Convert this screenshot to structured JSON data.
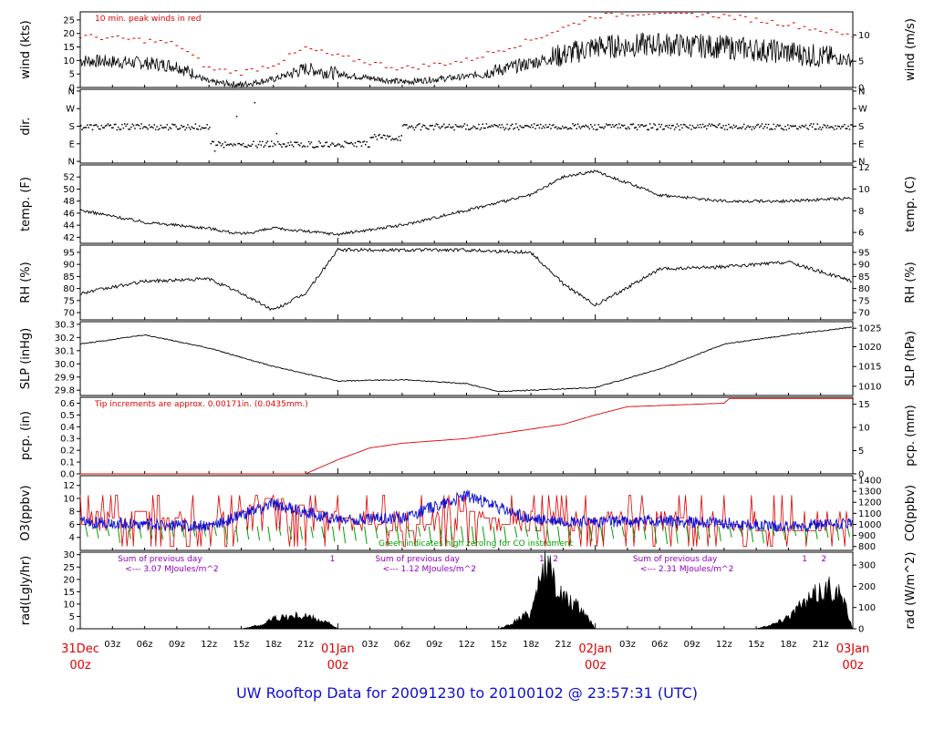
{
  "title": "UW Rooftop Data for 20091230  to  20100102 @ 23:57:31  (UTC)",
  "colors": {
    "red": "#e00000",
    "blue": "#1010d0",
    "green": "#00a000",
    "purple": "#9000c0",
    "black": "#000000"
  },
  "time_axis": {
    "hour_ticks": [
      "03z",
      "06z",
      "09z",
      "12z",
      "15z",
      "18z",
      "21z",
      "03z",
      "06z",
      "09z",
      "12z",
      "15z",
      "18z",
      "21z",
      "03z",
      "06z",
      "09z",
      "12z",
      "15z",
      "18z",
      "21z"
    ],
    "date_labels": [
      {
        "date": "31Dec",
        "hour": "00z",
        "day": 0
      },
      {
        "date": "01Jan",
        "hour": "00z",
        "day": 1
      },
      {
        "date": "02Jan",
        "hour": "00z",
        "day": 2
      },
      {
        "date": "03Jan",
        "hour": "00z",
        "day": 3
      }
    ]
  },
  "chart_data": [
    {
      "type": "line",
      "panel": "wind",
      "ylabel": "wind (kts)",
      "y2label": "wind (m/s)",
      "ylim": [
        0,
        28
      ],
      "yticks": [
        "0",
        "5",
        "10",
        "15",
        "20",
        "25"
      ],
      "y2ticks": [
        "0",
        "5",
        "10"
      ],
      "annotation": "10 min. peak winds in red",
      "series": [
        {
          "color": "black",
          "x_hours": [
            0,
            6,
            9,
            12,
            15,
            18,
            21,
            24,
            30,
            36,
            42,
            45,
            48,
            54,
            60,
            66,
            72
          ],
          "values": [
            10,
            9,
            8,
            2,
            1,
            3,
            7,
            5,
            2,
            4,
            9,
            12,
            15,
            16,
            15,
            13,
            10
          ]
        }
      ]
    },
    {
      "type": "scatter",
      "panel": "dir",
      "ylabel": "dir.",
      "yticks": [
        "N",
        "E",
        "S",
        "W",
        "N"
      ],
      "y2ticks": [
        "N",
        "E",
        "S",
        "W",
        "N"
      ],
      "series": [
        {
          "color": "black",
          "x_hours": [
            0,
            6,
            12,
            15,
            18,
            24,
            27,
            30,
            36,
            48,
            60,
            72
          ],
          "values": [
            "S",
            "S",
            "S",
            "E",
            "E",
            "E",
            "E",
            "SE",
            "S",
            "S",
            "S",
            "S"
          ]
        }
      ]
    },
    {
      "type": "line",
      "panel": "temp",
      "ylabel": "temp. (F)",
      "y2label": "temp. (C)",
      "ylim": [
        41,
        54
      ],
      "yticks": [
        "42",
        "44",
        "46",
        "48",
        "50",
        "52"
      ],
      "y2ticks": [
        "6",
        "8",
        "10",
        "12"
      ],
      "series": [
        {
          "color": "black",
          "x_hours": [
            0,
            6,
            12,
            15,
            18,
            24,
            30,
            36,
            42,
            45,
            48,
            54,
            60,
            66,
            72
          ],
          "values": [
            46.5,
            44.5,
            43.5,
            42.5,
            43.5,
            42.5,
            44,
            46.5,
            49,
            52,
            53,
            49,
            48,
            48,
            48.5
          ]
        }
      ]
    },
    {
      "type": "line",
      "panel": "rh",
      "ylabel": "RH (%)",
      "y2label": "RH (%)",
      "ylim": [
        67,
        98
      ],
      "yticks": [
        "70",
        "75",
        "80",
        "85",
        "90",
        "95"
      ],
      "y2ticks": [
        "70",
        "75",
        "80",
        "85",
        "90",
        "95"
      ],
      "series": [
        {
          "color": "black",
          "x_hours": [
            0,
            6,
            12,
            15,
            18,
            21,
            24,
            30,
            36,
            42,
            45,
            48,
            54,
            60,
            66,
            72
          ],
          "values": [
            78,
            83,
            84,
            78,
            71,
            78,
            96,
            96,
            96,
            95,
            82,
            73,
            88,
            89,
            91,
            83
          ]
        }
      ]
    },
    {
      "type": "line",
      "panel": "slp",
      "ylabel": "SLP (inHg)",
      "y2label": "SLP (hPa)",
      "ylim": [
        29.76,
        30.32
      ],
      "yticks": [
        "29.8",
        "29.9",
        "30.0",
        "30.1",
        "30.2",
        "30.3"
      ],
      "y2ticks": [
        "1010",
        "1015",
        "1020",
        "1025"
      ],
      "series": [
        {
          "color": "black",
          "x_hours": [
            0,
            6,
            12,
            18,
            24,
            30,
            36,
            39,
            42,
            48,
            54,
            60,
            66,
            72
          ],
          "values": [
            30.15,
            30.22,
            30.12,
            29.98,
            29.87,
            29.88,
            29.85,
            29.79,
            29.8,
            29.82,
            29.96,
            30.15,
            30.22,
            30.28
          ]
        }
      ]
    },
    {
      "type": "line",
      "panel": "pcp",
      "ylabel": "pcp. (in)",
      "y2label": "pcp. (mm)",
      "ylim": [
        0,
        0.65
      ],
      "yticks": [
        "0.0",
        "0.1",
        "0.2",
        "0.3",
        "0.4",
        "0.5",
        "0.6"
      ],
      "y2ticks": [
        "0",
        "5",
        "10",
        "15"
      ],
      "annotation": "Tip increments are approx. 0.00171in. (0.0435mm.)",
      "series": [
        {
          "color": "red",
          "x_hours": [
            0,
            21,
            24,
            27,
            30,
            36,
            39,
            45,
            48,
            51,
            57,
            60,
            60.5,
            72
          ],
          "values": [
            0,
            0,
            0.12,
            0.22,
            0.26,
            0.3,
            0.34,
            0.42,
            0.5,
            0.57,
            0.59,
            0.6,
            0.64,
            0.64
          ]
        }
      ]
    },
    {
      "type": "line",
      "panel": "chem",
      "ylabel": "O3(ppbv)",
      "y2label": "CO(ppbv)",
      "ylim": [
        2,
        13.5
      ],
      "yticks": [
        "4",
        "6",
        "8",
        "10",
        "12"
      ],
      "y2ticks": [
        "800",
        "900",
        "1000",
        "1100",
        "1200",
        "1300",
        "1400"
      ],
      "annotation": "Green indicates high zeroing for CO instrument",
      "series": [
        {
          "name": "O3",
          "color": "red",
          "x_hours": [
            0,
            6,
            12,
            18,
            24,
            30,
            36,
            42,
            48,
            54,
            60,
            66,
            72
          ],
          "values": [
            6,
            8,
            6,
            10,
            7,
            5,
            8,
            5,
            7,
            7,
            6,
            5,
            6
          ]
        },
        {
          "name": "CO",
          "color": "blue",
          "x_hours": [
            0,
            6,
            12,
            18,
            24,
            30,
            36,
            42,
            48,
            54,
            60,
            66,
            72
          ],
          "values": [
            1000,
            980,
            960,
            1160,
            1020,
            1040,
            1240,
            1020,
            1000,
            1010,
            990,
            960,
            990
          ]
        }
      ]
    },
    {
      "type": "area",
      "panel": "rad",
      "ylabel": "rad(Lgly/hr)",
      "y2label": "rad (W/m^2)",
      "ylim": [
        0,
        31
      ],
      "yticks": [
        "0",
        "5",
        "10",
        "15",
        "20",
        "25",
        "30"
      ],
      "y2ticks": [
        "0",
        "100",
        "200",
        "300"
      ],
      "annotations": [
        {
          "day": 0,
          "line1": "Sum of previous day",
          "line2": "<--- 3.07 MJoules/m^2"
        },
        {
          "day": 1,
          "line1": "Sum of previous day",
          "line2": "<--- 1.12 MJoules/m^2"
        },
        {
          "day": 2,
          "line1": "Sum of previous day",
          "line2": "<--- 2.31 MJoules/m^2"
        }
      ],
      "markers": [
        "1",
        "1",
        "2",
        "1",
        "2"
      ],
      "series": [
        {
          "color": "black",
          "x_hours": [
            0,
            15,
            17,
            18,
            20,
            21,
            23,
            24,
            36,
            39,
            40,
            42,
            43,
            44,
            45,
            47,
            48,
            60,
            63,
            65,
            67,
            69,
            70,
            71,
            72
          ],
          "values": [
            0,
            0,
            2,
            5,
            6,
            6,
            3,
            0,
            0,
            0,
            2,
            8,
            30,
            25,
            15,
            8,
            0,
            0,
            0,
            3,
            10,
            18,
            20,
            15,
            0
          ]
        }
      ]
    }
  ]
}
